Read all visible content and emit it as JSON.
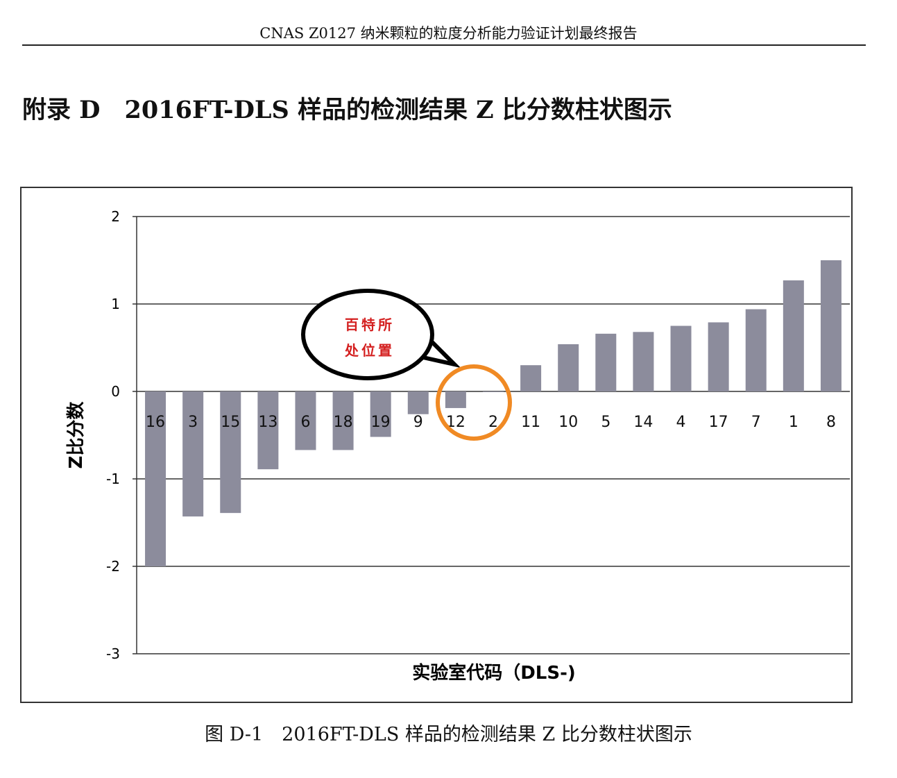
{
  "header": {
    "text": "CNAS Z0127 纳米颗粒的粒度分析能力验证计划最终报告"
  },
  "title": "附录 D　2016FT-DLS 样品的检测结果 Z 比分数柱状图示",
  "caption": "图 D-1　2016FT-DLS 样品的检测结果 Z 比分数柱状图示",
  "annotation": {
    "line1": "百特所",
    "line2": "处位置",
    "highlighted_category": "12"
  },
  "colors": {
    "bar": "#8c8c9c",
    "highlight": "#f08a24",
    "annotation_text": "#d42020"
  },
  "chart_data": {
    "type": "bar",
    "title": "",
    "xlabel": "实验室代码（DLS-)",
    "ylabel": "Z比分数",
    "ylim": [
      -3,
      2
    ],
    "yticks": [
      2,
      1,
      0,
      -1,
      -2,
      -3
    ],
    "grid": true,
    "categories": [
      "16",
      "3",
      "15",
      "13",
      "6",
      "18",
      "19",
      "9",
      "12",
      "2",
      "11",
      "10",
      "5",
      "14",
      "4",
      "17",
      "7",
      "1",
      "8"
    ],
    "values": [
      -2.0,
      -1.43,
      -1.39,
      -0.89,
      -0.67,
      -0.67,
      -0.52,
      -0.26,
      -0.19,
      0.0,
      0.3,
      0.54,
      0.66,
      0.68,
      0.75,
      0.79,
      0.94,
      1.27,
      1.5
    ]
  }
}
